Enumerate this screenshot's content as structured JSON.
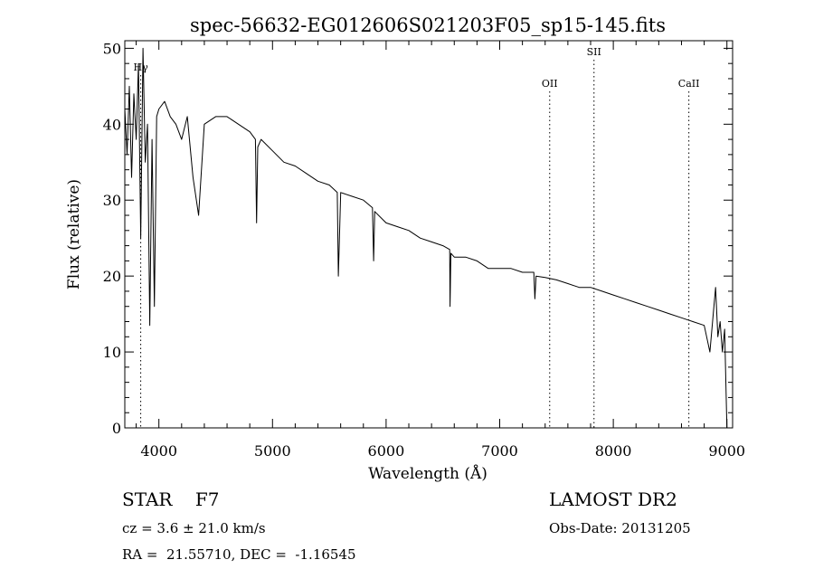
{
  "chart_data": {
    "type": "line",
    "title": "spec-56632-EG012606S021203F05_sp15-145.fits",
    "xlabel": "Wavelength (Å)",
    "ylabel": "Flux (relative)",
    "xlim": [
      3700,
      9050
    ],
    "ylim": [
      0,
      51
    ],
    "xticks": [
      4000,
      5000,
      6000,
      7000,
      8000,
      9000
    ],
    "yticks": [
      0,
      10,
      20,
      30,
      40,
      50
    ],
    "grid": false,
    "series": [
      {
        "x": [
          3700,
          3720,
          3740,
          3760,
          3780,
          3800,
          3820,
          3840,
          3860,
          3880,
          3900,
          3920,
          3940,
          3960,
          3980,
          4000,
          4050,
          4100,
          4150,
          4200,
          4250,
          4300,
          4350,
          4400,
          4500,
          4600,
          4700,
          4800,
          4850,
          4860,
          4870,
          4900,
          5000,
          5100,
          5200,
          5300,
          5400,
          5500,
          5570,
          5580,
          5600,
          5700,
          5800,
          5880,
          5890,
          5900,
          6000,
          6100,
          6200,
          6300,
          6400,
          6500,
          6560,
          6563,
          6570,
          6600,
          6700,
          6800,
          6900,
          7000,
          7100,
          7200,
          7300,
          7310,
          7320,
          7400,
          7500,
          7600,
          7700,
          7800,
          7900,
          8000,
          8100,
          8200,
          8300,
          8400,
          8500,
          8600,
          8700,
          8800,
          8850,
          8880,
          8900,
          8920,
          8940,
          8960,
          8980,
          9000
        ],
        "y": [
          42,
          36,
          45,
          33,
          44,
          38,
          48,
          25,
          50,
          35,
          40,
          13.5,
          38,
          16,
          41,
          42,
          43,
          41,
          40,
          38,
          41,
          33,
          28,
          40,
          41,
          41,
          40,
          39,
          38,
          27,
          37,
          38,
          36.5,
          35,
          34.5,
          33.5,
          32.5,
          32,
          31,
          20,
          31,
          30.5,
          30,
          29,
          22,
          28.5,
          27,
          26.5,
          26,
          25,
          24.5,
          24,
          23.5,
          16,
          23,
          22.5,
          22.5,
          22,
          21,
          21,
          21,
          20.5,
          20.5,
          17,
          20,
          19.8,
          19.5,
          19,
          18.5,
          18.5,
          18,
          17.5,
          17,
          16.5,
          16,
          15.5,
          15,
          14.5,
          14,
          13.5,
          10,
          15,
          18.5,
          12,
          14,
          10,
          13,
          0
        ]
      }
    ],
    "line_markers": [
      {
        "label": "Hγ",
        "wavelength": 3840
      },
      {
        "label": "OII",
        "wavelength": 7440
      },
      {
        "label": "SII",
        "wavelength": 7830
      },
      {
        "label": "CaII",
        "wavelength": 8665
      }
    ]
  },
  "info": {
    "class_line": "STAR    F7",
    "survey": "LAMOST DR2",
    "cz": "cz = 3.6 ± 21.0 km/s",
    "obs_date": "Obs-Date: 20131205",
    "coords": "RA =  21.55710, DEC =  -1.16545"
  }
}
